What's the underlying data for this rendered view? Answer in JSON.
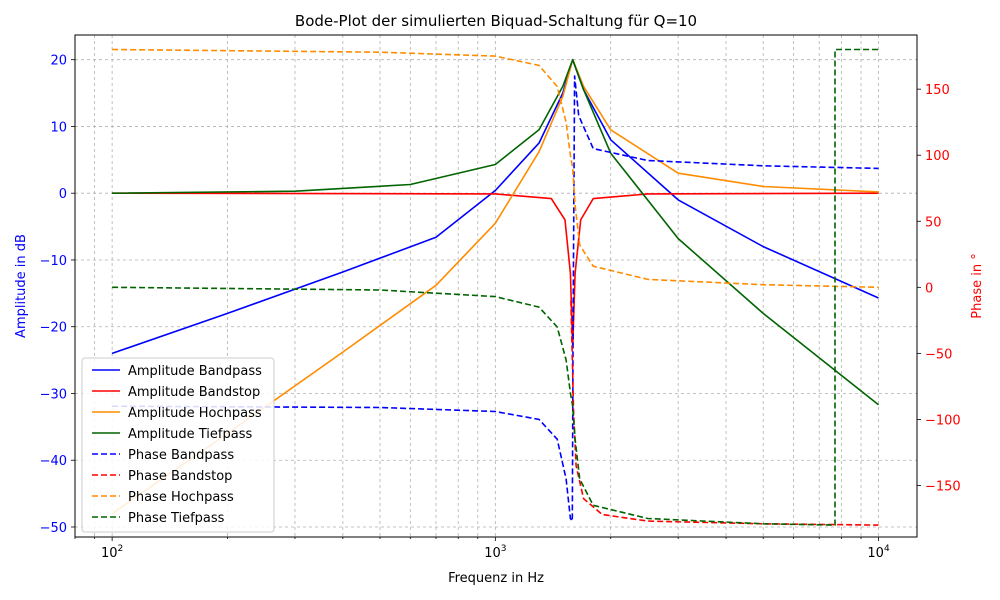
{
  "chart_data": {
    "type": "line",
    "title": "Bode-Plot der simulierten Biquad-Schaltung für Q=10",
    "xlabel": "Frequenz in Hz",
    "ylabel_left": "Amplitude in dB",
    "ylabel_right": "Phase in °",
    "x_scale": "log",
    "xlim": [
      80,
      12600
    ],
    "ylim_left": [
      -51.5,
      23.7
    ],
    "ylim_right": [
      -189,
      191
    ],
    "x_major_ticks": [
      {
        "value": 100,
        "base": "10",
        "exp": "2"
      },
      {
        "value": 1000,
        "base": "10",
        "exp": "3"
      },
      {
        "value": 10000,
        "base": "10",
        "exp": "4"
      }
    ],
    "y_left_ticks": [
      "20",
      "10",
      "0",
      "−10",
      "−20",
      "−30",
      "−40",
      "−50"
    ],
    "y_left_tick_values": [
      20,
      10,
      0,
      -10,
      -20,
      -30,
      -40,
      -50
    ],
    "y_right_ticks": [
      "150",
      "100",
      "50",
      "0",
      "−50",
      "−100",
      "−150"
    ],
    "y_right_tick_values": [
      150,
      100,
      50,
      0,
      -50,
      -100,
      -150
    ],
    "grid": true,
    "legend_position": "lower-left",
    "f0_hz": 1592,
    "Q": 10,
    "series": [
      {
        "name": "Amplitude Bandpass",
        "axis": "left",
        "color": "#0000ff",
        "style": "solid",
        "x": [
          100,
          200,
          400,
          700,
          1000,
          1300,
          1500,
          1592,
          1700,
          2000,
          3000,
          5000,
          10000
        ],
        "y": [
          -24.0,
          -18.0,
          -11.8,
          -6.6,
          0.4,
          7.5,
          15.0,
          20.0,
          15.5,
          8.0,
          -1.0,
          -8.0,
          -15.7
        ]
      },
      {
        "name": "Amplitude Bandstop",
        "axis": "left",
        "color": "#ff0000",
        "style": "solid",
        "x": [
          100,
          1000,
          1400,
          1520,
          1570,
          1592,
          1615,
          1670,
          1800,
          2500,
          10000
        ],
        "y": [
          0,
          -0.1,
          -0.8,
          -4,
          -12,
          -23,
          -12,
          -4,
          -0.8,
          -0.1,
          0
        ]
      },
      {
        "name": "Amplitude Hochpass",
        "axis": "left",
        "color": "#ff8c00",
        "style": "solid",
        "x": [
          100,
          200,
          400,
          700,
          1000,
          1300,
          1500,
          1592,
          1700,
          2000,
          3000,
          5000,
          10000
        ],
        "y": [
          -48.0,
          -36.0,
          -23.8,
          -13.8,
          -4.5,
          6.2,
          14.5,
          20.0,
          16.0,
          9.5,
          3.0,
          1.0,
          0.2
        ]
      },
      {
        "name": "Amplitude Tiefpass",
        "axis": "left",
        "color": "#006400",
        "style": "solid",
        "x": [
          100,
          300,
          600,
          1000,
          1300,
          1500,
          1592,
          1700,
          2000,
          3000,
          5000,
          10000
        ],
        "y": [
          0.0,
          0.3,
          1.3,
          4.3,
          9.5,
          16.0,
          20.0,
          15.5,
          6.0,
          -6.8,
          -18.0,
          -31.7
        ]
      },
      {
        "name": "Phase Bandpass",
        "axis": "right",
        "color": "#0000ff",
        "style": "dashed",
        "x": [
          100,
          500,
          1000,
          1300,
          1450,
          1530,
          1570,
          1588,
          1596,
          1610,
          1650,
          1800,
          2500,
          5000,
          10000
        ],
        "y": [
          -90,
          -91,
          -94,
          -100,
          -115,
          -145,
          -175,
          -177,
          -30,
          160,
          130,
          105,
          96,
          92,
          90
        ]
      },
      {
        "name": "Phase Bandstop",
        "axis": "right",
        "color": "#ff0000",
        "style": "dashed",
        "x": [
          1575,
          1590,
          1600,
          1625,
          1700,
          1900,
          2500,
          5000,
          10000
        ],
        "y": [
          -10,
          -60,
          -95,
          -135,
          -160,
          -172,
          -177,
          -179,
          -180
        ]
      },
      {
        "name": "Phase Hochpass",
        "axis": "right",
        "color": "#ff8c00",
        "style": "dashed",
        "x": [
          100,
          500,
          1000,
          1300,
          1450,
          1530,
          1570,
          1592,
          1615,
          1660,
          1800,
          2500,
          5000,
          10000
        ],
        "y": [
          180,
          178,
          175,
          168,
          152,
          125,
          100,
          90,
          62,
          32,
          16,
          6,
          2,
          0
        ]
      },
      {
        "name": "Phase Tiefpass",
        "axis": "right",
        "color": "#006400",
        "style": "dashed",
        "x": [
          100,
          500,
          1000,
          1300,
          1450,
          1530,
          1570,
          1592,
          1615,
          1660,
          1800,
          2500,
          5000,
          7700,
          7700,
          10000
        ],
        "y": [
          0,
          -2,
          -7,
          -15,
          -30,
          -55,
          -80,
          -90,
          -115,
          -145,
          -165,
          -175,
          -179,
          -180,
          180,
          180
        ]
      }
    ]
  }
}
